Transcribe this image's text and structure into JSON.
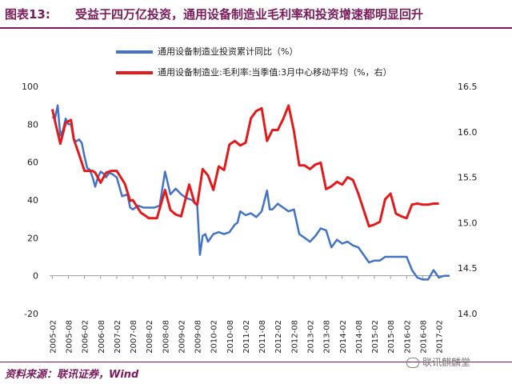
{
  "header": {
    "figure_label": "图表13:",
    "title": "受益于四万亿投资，通用设备制造业毛利率和投资增速都明显回升"
  },
  "footer": {
    "source": "资料来源：联讯证券，Wind",
    "watermark": "联讯麒麟堂"
  },
  "colors": {
    "series1": "#4472c4",
    "series2": "#e31a1c",
    "accent": "#7a1b5a"
  },
  "icons": {
    "watermark": "wechat-icon"
  },
  "chart_data": {
    "type": "line",
    "title": "",
    "x_range": [
      "2005-01",
      "2017-06"
    ],
    "x_ticks": [
      "2005-02",
      "2005-08",
      "2006-02",
      "2006-08",
      "2007-02",
      "2007-08",
      "2008-02",
      "2008-08",
      "2009-02",
      "2009-08",
      "2010-02",
      "2010-08",
      "2011-02",
      "2011-08",
      "2012-02",
      "2012-08",
      "2013-02",
      "2013-08",
      "2014-02",
      "2014-08",
      "2015-02",
      "2015-08",
      "2016-02",
      "2016-08",
      "2017-02"
    ],
    "y_left": {
      "min": -20,
      "max": 100,
      "ticks": [
        -20,
        0,
        20,
        40,
        60,
        80,
        100
      ]
    },
    "y_right": {
      "min": 14.0,
      "max": 16.5,
      "ticks": [
        "14.0",
        "14.5",
        "15.0",
        "15.5",
        "16.0",
        "16.5"
      ]
    },
    "legend_position": "top",
    "series": [
      {
        "name": "通用设备制造业投资累计同比（%）",
        "axis": "left",
        "points": [
          [
            "2005-02",
            84
          ],
          [
            "2005-03",
            83
          ],
          [
            "2005-04",
            90
          ],
          [
            "2005-05",
            74
          ],
          [
            "2005-06",
            77
          ],
          [
            "2005-07",
            83
          ],
          [
            "2005-08",
            80
          ],
          [
            "2005-09",
            80
          ],
          [
            "2005-10",
            72
          ],
          [
            "2005-11",
            71
          ],
          [
            "2005-12",
            72
          ],
          [
            "2006-01",
            70
          ],
          [
            "2006-02",
            63
          ],
          [
            "2006-03",
            57
          ],
          [
            "2006-04",
            56
          ],
          [
            "2006-05",
            52
          ],
          [
            "2006-06",
            47
          ],
          [
            "2006-07",
            52
          ],
          [
            "2006-08",
            55
          ],
          [
            "2006-09",
            54
          ],
          [
            "2006-10",
            52
          ],
          [
            "2006-11",
            54
          ],
          [
            "2006-12",
            54
          ],
          [
            "2007-02",
            52
          ],
          [
            "2007-04",
            42
          ],
          [
            "2007-06",
            43
          ],
          [
            "2007-07",
            36
          ],
          [
            "2007-08",
            35
          ],
          [
            "2007-10",
            37
          ],
          [
            "2007-12",
            36
          ],
          [
            "2008-02",
            36
          ],
          [
            "2008-04",
            36
          ],
          [
            "2008-06",
            37
          ],
          [
            "2008-08",
            55
          ],
          [
            "2008-10",
            43
          ],
          [
            "2008-12",
            46
          ],
          [
            "2009-02",
            43
          ],
          [
            "2009-04",
            41
          ],
          [
            "2009-06",
            40
          ],
          [
            "2009-08",
            37
          ],
          [
            "2009-09",
            11
          ],
          [
            "2009-10",
            21
          ],
          [
            "2009-11",
            22
          ],
          [
            "2009-12",
            18
          ],
          [
            "2010-02",
            22
          ],
          [
            "2010-04",
            23
          ],
          [
            "2010-06",
            22
          ],
          [
            "2010-08",
            23
          ],
          [
            "2010-10",
            27
          ],
          [
            "2010-11",
            28
          ],
          [
            "2010-12",
            34
          ],
          [
            "2011-02",
            32
          ],
          [
            "2011-04",
            33
          ],
          [
            "2011-06",
            31
          ],
          [
            "2011-08",
            34
          ],
          [
            "2011-10",
            45
          ],
          [
            "2011-11",
            35
          ],
          [
            "2011-12",
            35
          ],
          [
            "2012-02",
            38
          ],
          [
            "2012-04",
            36
          ],
          [
            "2012-06",
            34
          ],
          [
            "2012-08",
            35
          ],
          [
            "2012-10",
            22
          ],
          [
            "2012-12",
            20
          ],
          [
            "2013-02",
            18
          ],
          [
            "2013-04",
            21
          ],
          [
            "2013-06",
            25
          ],
          [
            "2013-08",
            24
          ],
          [
            "2013-10",
            15
          ],
          [
            "2013-12",
            19
          ],
          [
            "2014-02",
            17
          ],
          [
            "2014-04",
            18
          ],
          [
            "2014-06",
            16
          ],
          [
            "2014-08",
            15
          ],
          [
            "2014-10",
            11
          ],
          [
            "2014-12",
            7
          ],
          [
            "2015-02",
            8
          ],
          [
            "2015-04",
            8
          ],
          [
            "2015-06",
            10
          ],
          [
            "2015-08",
            10
          ],
          [
            "2015-10",
            10
          ],
          [
            "2015-12",
            10
          ],
          [
            "2016-02",
            10
          ],
          [
            "2016-04",
            3
          ],
          [
            "2016-06",
            -1
          ],
          [
            "2016-08",
            -2
          ],
          [
            "2016-10",
            -2
          ],
          [
            "2016-12",
            3
          ],
          [
            "2017-02",
            -1
          ],
          [
            "2017-04",
            0
          ],
          [
            "2017-06",
            0
          ]
        ]
      },
      {
        "name": "通用设备制造业:毛利率:当季值:3月中心移动平均（%，右）",
        "axis": "right",
        "points": [
          [
            "2005-02",
            16.25
          ],
          [
            "2005-03",
            16.12
          ],
          [
            "2005-05",
            15.87
          ],
          [
            "2005-07",
            16.1
          ],
          [
            "2005-09",
            16.13
          ],
          [
            "2005-10",
            15.92
          ],
          [
            "2005-12",
            15.75
          ],
          [
            "2006-02",
            15.57
          ],
          [
            "2006-05",
            15.57
          ],
          [
            "2006-06",
            15.55
          ],
          [
            "2006-08",
            15.44
          ],
          [
            "2006-10",
            15.55
          ],
          [
            "2006-12",
            15.57
          ],
          [
            "2007-02",
            15.57
          ],
          [
            "2007-05",
            15.43
          ],
          [
            "2007-07",
            15.24
          ],
          [
            "2007-08",
            15.25
          ],
          [
            "2007-11",
            15.11
          ],
          [
            "2008-02",
            15.05
          ],
          [
            "2008-05",
            15.05
          ],
          [
            "2008-08",
            15.36
          ],
          [
            "2008-10",
            15.14
          ],
          [
            "2008-12",
            15.09
          ],
          [
            "2009-02",
            15.07
          ],
          [
            "2009-05",
            15.42
          ],
          [
            "2009-07",
            15.22
          ],
          [
            "2009-08",
            15.2
          ],
          [
            "2009-10",
            15.59
          ],
          [
            "2009-12",
            15.52
          ],
          [
            "2010-02",
            15.36
          ],
          [
            "2010-04",
            15.62
          ],
          [
            "2010-06",
            15.58
          ],
          [
            "2010-08",
            15.86
          ],
          [
            "2010-10",
            15.9
          ],
          [
            "2010-12",
            15.85
          ],
          [
            "2011-02",
            15.88
          ],
          [
            "2011-04",
            16.15
          ],
          [
            "2011-06",
            16.23
          ],
          [
            "2011-08",
            16.26
          ],
          [
            "2011-10",
            15.9
          ],
          [
            "2011-12",
            16.02
          ],
          [
            "2012-02",
            16.02
          ],
          [
            "2012-04",
            16.14
          ],
          [
            "2012-06",
            16.29
          ],
          [
            "2012-08",
            16.01
          ],
          [
            "2012-10",
            15.63
          ],
          [
            "2012-12",
            15.63
          ],
          [
            "2013-02",
            15.59
          ],
          [
            "2013-04",
            15.64
          ],
          [
            "2013-06",
            15.66
          ],
          [
            "2013-08",
            15.37
          ],
          [
            "2013-10",
            15.4
          ],
          [
            "2013-12",
            15.45
          ],
          [
            "2014-02",
            15.42
          ],
          [
            "2014-04",
            15.5
          ],
          [
            "2014-06",
            15.47
          ],
          [
            "2014-08",
            15.32
          ],
          [
            "2014-10",
            15.14
          ],
          [
            "2014-12",
            14.96
          ],
          [
            "2015-02",
            14.98
          ],
          [
            "2015-04",
            15.01
          ],
          [
            "2015-06",
            15.26
          ],
          [
            "2015-08",
            15.32
          ],
          [
            "2015-10",
            15.1
          ],
          [
            "2015-12",
            15.07
          ],
          [
            "2016-02",
            15.05
          ],
          [
            "2016-04",
            15.2
          ],
          [
            "2016-06",
            15.21
          ],
          [
            "2016-08",
            15.2
          ],
          [
            "2016-10",
            15.2
          ],
          [
            "2016-12",
            15.21
          ],
          [
            "2017-02",
            15.21
          ]
        ]
      }
    ]
  }
}
